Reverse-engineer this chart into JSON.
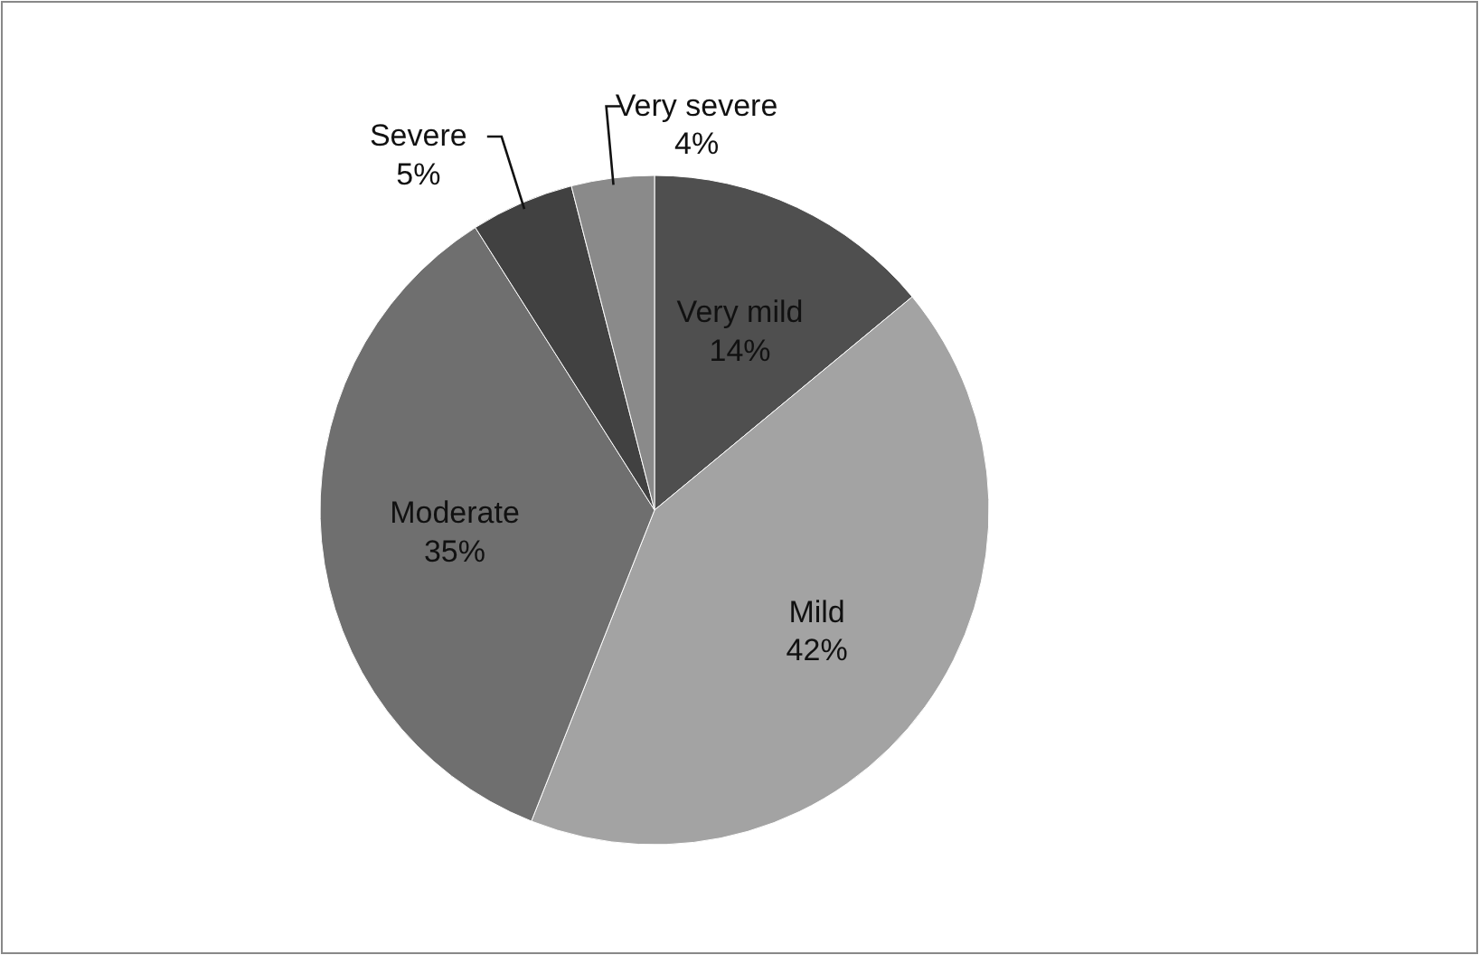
{
  "chart_data": {
    "type": "pie",
    "categories": [
      "Very mild",
      "Mild",
      "Moderate",
      "Severe",
      "Very severe"
    ],
    "values": [
      14,
      42,
      35,
      5,
      4
    ],
    "value_labels": [
      "14%",
      "42%",
      "35%",
      "5%",
      "4%"
    ],
    "colors": [
      "#4f4f4f",
      "#a3a3a3",
      "#6f6f6f",
      "#414141",
      "#8a8a8a"
    ],
    "legend": false
  }
}
